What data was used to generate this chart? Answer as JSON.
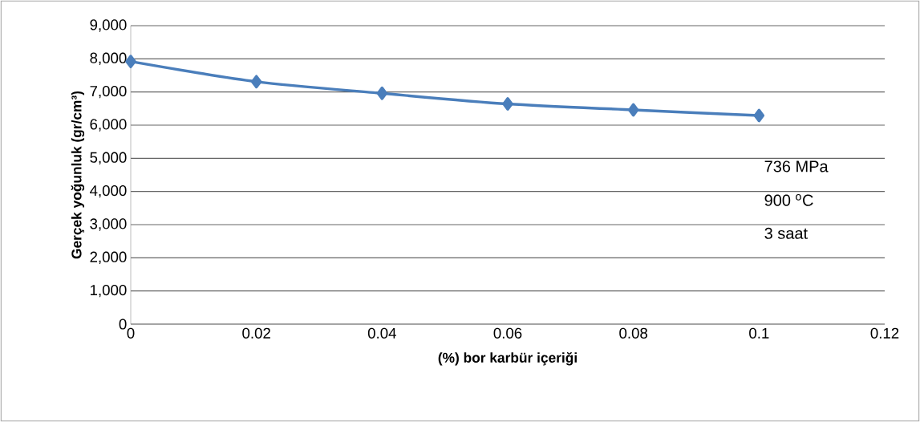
{
  "chart_data": {
    "type": "line",
    "xlabel": "(%) bor karbür içeriği",
    "ylabel": "Gerçek  yoğunluk (gr/cm³)",
    "x": [
      0,
      0.02,
      0.04,
      0.06,
      0.08,
      0.1
    ],
    "series": [
      {
        "color": "#4a7ebb",
        "values": [
          7920,
          7310,
          6960,
          6640,
          6460,
          6290
        ]
      }
    ],
    "xlim": [
      0,
      0.12
    ],
    "xticks": [
      0,
      0.02,
      0.04,
      0.06,
      0.08,
      0.1,
      0.12
    ],
    "ylim": [
      0,
      9000
    ],
    "yticks": [
      0,
      {
        "value": 1000,
        "label": "1,000"
      },
      {
        "value": 2000,
        "label": "2,000"
      },
      {
        "value": 3000,
        "label": "3,000"
      },
      {
        "value": 4000,
        "label": "4,000"
      },
      {
        "value": 5000,
        "label": "5,000"
      },
      {
        "value": 6000,
        "label": "6,000"
      },
      {
        "value": 7000,
        "label": "7,000"
      },
      {
        "value": 8000,
        "label": "8,000"
      },
      {
        "value": 9000,
        "label": "9,000"
      }
    ],
    "grid": "y",
    "marker": "diamond",
    "line_style": "solid",
    "annotations": [
      "736 MPa",
      "900 $^{o}$C",
      "3 saat"
    ]
  }
}
